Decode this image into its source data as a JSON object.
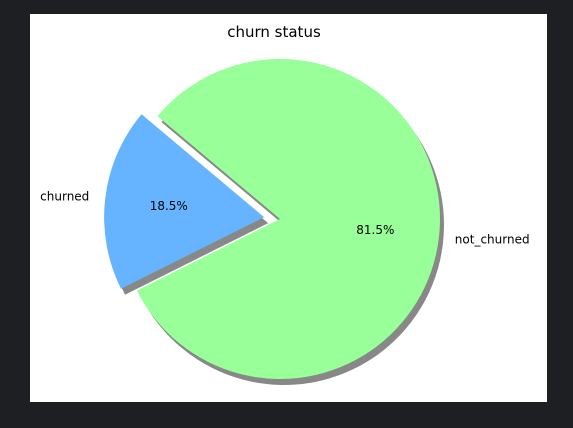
{
  "chart_data": {
    "type": "pie",
    "title": "churn status",
    "slices": [
      {
        "label": "churned",
        "value": 18.5,
        "pct_label": "18.5%",
        "color": "#66b3ff",
        "exploded": true
      },
      {
        "label": "not_churned",
        "value": 81.5,
        "pct_label": "81.5%",
        "color": "#99ff99",
        "exploded": false
      }
    ],
    "shadow": true,
    "legend": "none"
  },
  "colors": {
    "background": "#1e1f22",
    "figure": "#ffffff",
    "shadow": "#888888"
  }
}
